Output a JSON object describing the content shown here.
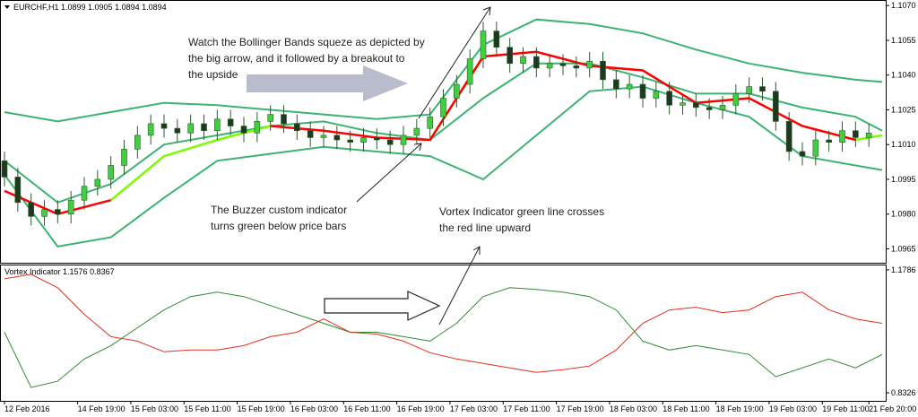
{
  "chart_data": [
    {
      "type": "candlestick",
      "title": "EURCHF,H1  1.0899 1.0905 1.0894 1.0894",
      "annotations": [
        [
          "Watch the Bollinger Bands squeze  as depicted by",
          "the big arrow, and it followed by a breakout to",
          "the upside"
        ],
        [
          "The Buzzer custom indicator",
          "turns green below price bars"
        ],
        [
          "Vortex Indicator green line crosses",
          "the red line upward"
        ]
      ],
      "xlim": [
        0,
        132
      ],
      "ylim": [
        1.0959,
        1.1072
      ],
      "yticks": [
        {
          "value": 1.107,
          "label": "1.1070"
        },
        {
          "value": 1.1055,
          "label": "1.1055"
        },
        {
          "value": 1.104,
          "label": "1.1040"
        },
        {
          "value": 1.1025,
          "label": "1.1025"
        },
        {
          "value": 1.101,
          "label": "1.1010"
        },
        {
          "value": 1.0995,
          "label": "1.0995"
        },
        {
          "value": 1.098,
          "label": "1.0980"
        },
        {
          "value": 1.0965,
          "label": "1.0965"
        }
      ],
      "up_color": "#3fcf3f",
      "down_color": "#1e3a1e",
      "wick_color": "#2d5a2d",
      "x": [
        0,
        2,
        4,
        6,
        8,
        10,
        12,
        14,
        16,
        18,
        20,
        22,
        24,
        26,
        28,
        30,
        32,
        34,
        36,
        38,
        40,
        42,
        44,
        46,
        48,
        50,
        52,
        54,
        56,
        58,
        60,
        62,
        64,
        66,
        68,
        70,
        72,
        74,
        76,
        78,
        80,
        82,
        84,
        86,
        88,
        90,
        92,
        94,
        96,
        98,
        100,
        102,
        104,
        106,
        108,
        110,
        112,
        114,
        116,
        118,
        120,
        122,
        124,
        126,
        128,
        130
      ],
      "open": [
        1.1003,
        1.0996,
        1.0985,
        1.0979,
        1.0982,
        1.098,
        1.0986,
        1.0992,
        1.0995,
        1.1001,
        1.1008,
        1.1014,
        1.1019,
        1.1017,
        1.1015,
        1.1019,
        1.1016,
        1.1021,
        1.1018,
        1.1015,
        1.102,
        1.1023,
        1.1019,
        1.1016,
        1.1013,
        1.1014,
        1.1012,
        1.1011,
        1.1013,
        1.1012,
        1.101,
        1.1014,
        1.1017,
        1.1022,
        1.103,
        1.1036,
        1.1047,
        1.1059,
        1.1052,
        1.1045,
        1.1048,
        1.1043,
        1.1045,
        1.1044,
        1.1043,
        1.1046,
        1.1038,
        1.1034,
        1.1036,
        1.103,
        1.1033,
        1.1027,
        1.1028,
        1.1026,
        1.1025,
        1.1027,
        1.1032,
        1.1035,
        1.1033,
        1.102,
        1.1007,
        1.1005,
        1.1012,
        1.1011,
        1.1016,
        1.1013
      ],
      "high": [
        1.1007,
        1.1,
        1.0989,
        1.0986,
        1.0986,
        1.099,
        1.0996,
        1.0999,
        1.1005,
        1.1012,
        1.1018,
        1.1023,
        1.1023,
        1.1021,
        1.1023,
        1.1023,
        1.1025,
        1.1025,
        1.1022,
        1.1024,
        1.1027,
        1.1027,
        1.1023,
        1.102,
        1.1018,
        1.1018,
        1.1016,
        1.1017,
        1.1017,
        1.1016,
        1.1018,
        1.1021,
        1.1026,
        1.1034,
        1.104,
        1.1051,
        1.1063,
        1.1063,
        1.1056,
        1.1052,
        1.1052,
        1.1049,
        1.1049,
        1.1048,
        1.105,
        1.105,
        1.1042,
        1.104,
        1.104,
        1.1037,
        1.1037,
        1.1032,
        1.1032,
        1.103,
        1.1031,
        1.1036,
        1.1039,
        1.1039,
        1.1037,
        1.1024,
        1.1011,
        1.1016,
        1.1016,
        1.102,
        1.102,
        1.1019
      ],
      "low": [
        1.0992,
        1.0981,
        1.0975,
        1.0975,
        1.0976,
        1.0976,
        1.0982,
        1.0988,
        1.0991,
        1.0997,
        1.1004,
        1.101,
        1.1013,
        1.1011,
        1.1011,
        1.1012,
        1.1012,
        1.1014,
        1.1011,
        1.1011,
        1.1016,
        1.1015,
        1.1012,
        1.1009,
        1.1009,
        1.1008,
        1.1007,
        1.1007,
        1.1008,
        1.1006,
        1.1006,
        1.101,
        1.1013,
        1.1018,
        1.1026,
        1.1032,
        1.1043,
        1.1048,
        1.1041,
        1.1041,
        1.1039,
        1.1039,
        1.104,
        1.1039,
        1.1039,
        1.1034,
        1.103,
        1.103,
        1.1026,
        1.1026,
        1.1023,
        1.1023,
        1.1022,
        1.1021,
        1.1021,
        1.1023,
        1.1028,
        1.1029,
        1.1016,
        1.1003,
        1.1001,
        1.1001,
        1.1007,
        1.1007,
        1.1009,
        1.1009
      ],
      "close": [
        1.0996,
        1.0985,
        1.0979,
        1.0982,
        1.098,
        1.0986,
        1.0992,
        1.0995,
        1.1001,
        1.1008,
        1.1014,
        1.1019,
        1.1017,
        1.1015,
        1.1019,
        1.1016,
        1.1021,
        1.1018,
        1.1015,
        1.102,
        1.1023,
        1.1019,
        1.1016,
        1.1013,
        1.1014,
        1.1012,
        1.1011,
        1.1013,
        1.1012,
        1.101,
        1.1014,
        1.1017,
        1.1022,
        1.103,
        1.1036,
        1.1047,
        1.1059,
        1.1052,
        1.1045,
        1.1048,
        1.1043,
        1.1045,
        1.1044,
        1.1043,
        1.1046,
        1.1038,
        1.1034,
        1.1036,
        1.103,
        1.1033,
        1.1027,
        1.1028,
        1.1026,
        1.1025,
        1.1027,
        1.1032,
        1.1035,
        1.1033,
        1.102,
        1.1007,
        1.1005,
        1.1012,
        1.1011,
        1.1016,
        1.1013,
        1.1015
      ],
      "lines": [
        {
          "color": "#3cb371",
          "width": 2,
          "x": [
            0,
            8,
            16,
            24,
            32,
            40,
            48,
            56,
            64,
            72,
            80,
            88,
            96,
            104,
            112,
            120,
            128,
            132
          ],
          "values": [
            1.1024,
            1.102,
            1.1024,
            1.1028,
            1.1027,
            1.1025,
            1.1023,
            1.1021,
            1.1023,
            1.1053,
            1.1064,
            1.1062,
            1.1058,
            1.1051,
            1.1045,
            1.1041,
            1.1038,
            1.1037
          ]
        },
        {
          "color": "#3cb371",
          "width": 2,
          "x": [
            0,
            8,
            16,
            24,
            32,
            40,
            48,
            56,
            64,
            72,
            80,
            88,
            96,
            104,
            112,
            120,
            128,
            132
          ],
          "values": [
            1.1003,
            1.0985,
            1.0993,
            1.101,
            1.1014,
            1.1018,
            1.102,
            1.1015,
            1.1012,
            1.103,
            1.1045,
            1.1045,
            1.1039,
            1.1032,
            1.1032,
            1.1026,
            1.1022,
            1.1016
          ]
        },
        {
          "color": "#3cb371",
          "width": 2,
          "x": [
            0,
            8,
            16,
            24,
            32,
            40,
            48,
            56,
            64,
            72,
            80,
            88,
            96,
            104,
            112,
            120,
            128,
            132
          ],
          "values": [
            1.0997,
            1.0966,
            1.097,
            1.0987,
            1.1003,
            1.1006,
            1.1009,
            1.1007,
            1.1005,
            1.0995,
            1.1014,
            1.1033,
            1.1035,
            1.1028,
            1.1022,
            1.1005,
            1.1001,
            1.0999
          ]
        },
        {
          "color": "#7cfc00",
          "width": 2.5,
          "x": [
            0,
            8,
            16,
            24,
            32,
            40,
            48,
            56,
            64,
            72,
            80,
            88,
            96,
            104,
            112,
            120,
            128,
            132
          ],
          "values": [
            null,
            null,
            1.0986,
            1.1005,
            1.1012,
            1.1018,
            null,
            null,
            1.1012,
            1.1048,
            null,
            null,
            null,
            1.1028,
            1.103,
            null,
            1.1012,
            1.1014
          ]
        },
        {
          "color": "#ff0000",
          "width": 2.5,
          "x": [
            0,
            8,
            16,
            24,
            32,
            40,
            48,
            56,
            64,
            72,
            80,
            88,
            96,
            104,
            112,
            120,
            128,
            132
          ],
          "values": [
            1.099,
            1.098,
            1.0986,
            null,
            null,
            1.1018,
            1.1016,
            1.1013,
            1.1012,
            1.1048,
            1.105,
            1.1044,
            1.1042,
            1.1028,
            1.103,
            1.1018,
            1.1012,
            null
          ]
        }
      ]
    },
    {
      "type": "line",
      "title": "Vortex Indicator 1.1576 0.8367",
      "xlim": [
        0,
        132
      ],
      "ylim": [
        0.81,
        1.191
      ],
      "yticks": [
        1.1786,
        0.8326
      ],
      "xticks": [
        {
          "value": 0,
          "label": "12 Feb 2016"
        },
        {
          "value": 11,
          "label": "14 Feb 19:00"
        },
        {
          "value": 19,
          "label": "15 Feb 03:00"
        },
        {
          "value": 27,
          "label": "15 Feb 11:00"
        },
        {
          "value": 35,
          "label": "15 Feb 19:00"
        },
        {
          "value": 43,
          "label": "16 Feb 03:00"
        },
        {
          "value": 51,
          "label": "16 Feb 11:00"
        },
        {
          "value": 59,
          "label": "16 Feb 19:00"
        },
        {
          "value": 67,
          "label": "17 Feb 03:00"
        },
        {
          "value": 75,
          "label": "17 Feb 11:00"
        },
        {
          "value": 83,
          "label": "17 Feb 19:00"
        },
        {
          "value": 91,
          "label": "18 Feb 03:00"
        },
        {
          "value": 99,
          "label": "18 Feb 11:00"
        },
        {
          "value": 107,
          "label": "18 Feb 19:00"
        },
        {
          "value": 115,
          "label": "19 Feb 03:00"
        },
        {
          "value": 123,
          "label": "19 Feb 11:00"
        },
        {
          "value": 130,
          "label": "21 Feb 20:00"
        }
      ],
      "x": [
        0,
        4,
        8,
        12,
        16,
        20,
        24,
        28,
        32,
        36,
        40,
        44,
        48,
        52,
        56,
        60,
        64,
        68,
        72,
        76,
        80,
        84,
        88,
        92,
        96,
        100,
        104,
        108,
        112,
        116,
        120,
        124,
        128,
        132
      ],
      "series": [
        {
          "color": "#2e8b2e",
          "values": [
            1.0031,
            0.8477,
            0.8652,
            0.9279,
            0.9655,
            1.0156,
            1.0658,
            1.1034,
            1.1159,
            1.1034,
            1.0783,
            1.0532,
            1.0282,
            1.0031,
            1.0031,
            0.9906,
            0.978,
            1.0282,
            1.1034,
            1.1285,
            1.1234,
            1.1159,
            1.1034,
            1.0658,
            0.978,
            0.953,
            0.9655,
            0.953,
            0.9404,
            0.8778,
            0.9028,
            0.9279,
            0.9028,
            0.9404
          ]
        },
        {
          "color": "#e03020",
          "values": [
            1.1535,
            1.1661,
            1.1285,
            1.0532,
            0.9906,
            0.978,
            0.948,
            0.953,
            0.953,
            0.9655,
            0.9906,
            1.0031,
            1.0407,
            1.0031,
            0.9981,
            0.978,
            0.9454,
            0.9279,
            0.9154,
            0.9028,
            0.8903,
            0.8978,
            0.9078,
            0.953,
            1.0282,
            1.0658,
            1.0733,
            1.0583,
            1.0658,
            1.1034,
            1.1159,
            1.0658,
            1.0407,
            1.0282
          ]
        }
      ]
    }
  ]
}
